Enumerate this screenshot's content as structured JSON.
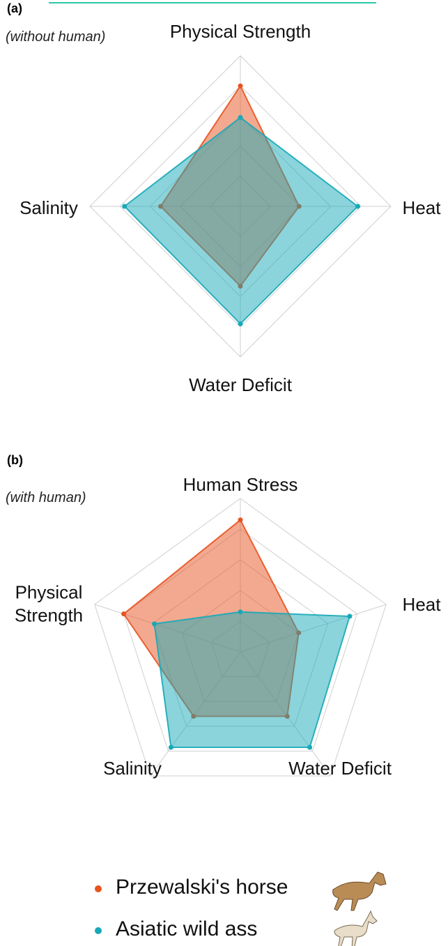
{
  "chart_data": [
    {
      "type": "radar",
      "panel": "(a)",
      "subtitle": "(without human)",
      "categories": [
        "Physical Strength",
        "Heat",
        "Water Deficit",
        "Salinity"
      ],
      "rlim": [
        0,
        1
      ],
      "rticks": [
        0.2,
        0.4,
        0.6,
        0.8,
        1
      ],
      "series": [
        {
          "color": "#e8531f",
          "values": [
            0.8,
            0.39,
            0.53,
            0.53
          ]
        },
        {
          "color": "#17a9b8",
          "values": [
            0.59,
            0.78,
            0.78,
            0.77
          ]
        }
      ]
    },
    {
      "type": "radar",
      "panel": "(b)",
      "subtitle": "(with human)",
      "categories": [
        "Human Stress",
        "Heat",
        "Water Deficit",
        "Salinity",
        "Physical Strength"
      ],
      "rlim": [
        0,
        1
      ],
      "rticks": [
        0.2,
        0.4,
        0.6,
        0.8,
        1
      ],
      "series": [
        {
          "color": "#e8531f",
          "values": [
            0.86,
            0.4,
            0.52,
            0.52,
            0.8
          ]
        },
        {
          "color": "#17a9b8",
          "values": [
            0.26,
            0.75,
            0.77,
            0.77,
            0.59
          ]
        }
      ]
    }
  ],
  "legend": [
    {
      "name": "Przewalski's horse",
      "color": "#e8531f"
    },
    {
      "name": "Asiatic wild ass",
      "color": "#17a9b8"
    }
  ]
}
